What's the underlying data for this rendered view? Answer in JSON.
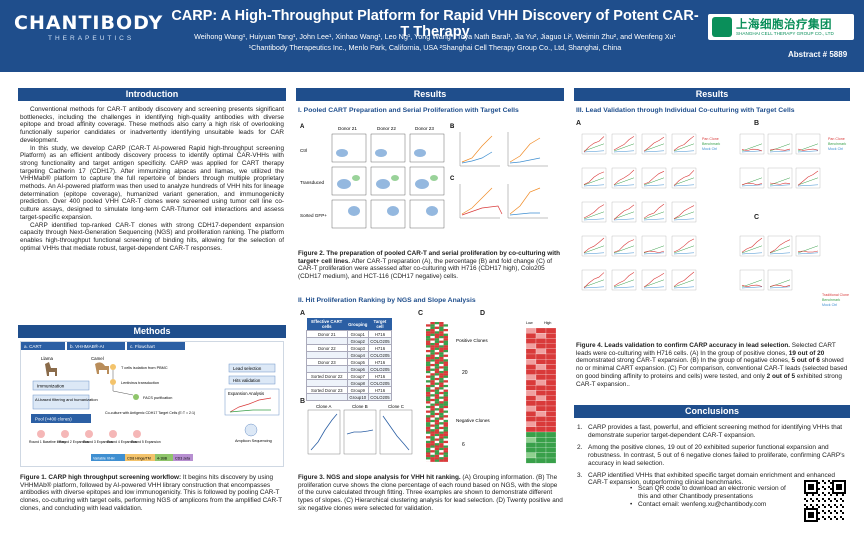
{
  "header": {
    "logo_brand": "CHANTIBODY",
    "logo_sub": "THERAPEUTICS",
    "title": "CARP: A High-Throughput Platform for Rapid VHH Discovery of Potent CAR-T Therapy",
    "authors": "Weihong Wang¹, Huiyuan Tang¹, John Lee¹, Xinhao Wang¹, Leo Ng¹, Yong Wang¹, Toya Nath Baral¹, Jia Yu², Jiaguo Li², Weimin Zhu², and Wenfeng Xu¹",
    "affiliations": "¹Chantibody Therapeutics Inc., Menlo Park, California, USA  ²Shanghai Cell Therapy Group Co., Ltd, Shanghai, China",
    "partner_logo_cn": "上海细胞治疗集团",
    "partner_logo_en": "SHANGHAI CELL THERAPY GROUP CO., LTD",
    "abstract_no": "Abstract # 5889"
  },
  "intro": {
    "heading": "Introduction",
    "p1": "Conventional methods for CAR-T antibody discovery and screening presents significant bottlenecks, including the challenges in identifying high-quality antibodies with diverse epitope and broad affinity coverage. These methods also carry a high risk of overlooking functionally superior candidates or inadvertently identifying unsuitable leads for CAR development.",
    "p2": "In this study, we develop CARP (CAR-T AI-powered Rapid high-throughput screening Platform) as an efficient antibody discovery process to identify optimal CAR-VHHs with strong functionality and target antigen specificity. CARP was applied for CART therapy targeting Cadherin 17 (CDH17). After immunizing alpacas and llamas, we utilized the VHHMab® platform to capture the full repertoire of binders through multiple proprietary methods. An AI-powered platform was then used to analyze hundreds of VHH hits for lineage determination (epitope coverage), humanized variant generation, and immunogenicity prediction. Over 400 pooled VHH CAR-T clones were screened using tumor cell line co-culture assays, designed to simulate long-term CAR-T/tumor cell interactions and assess target-specific expansion.",
    "p3": "CARP identified top-ranked CAR-T clones with strong CDH17-dependent expansion capacity through Next-Generation Sequencing (NGS) and proliferation ranking. The platform enables high-throughput functional screening of binding hits, allowing for the selection of optimal VHHs that mediate robust, target-dependent CAR-T responses."
  },
  "methods": {
    "heading": "Methods",
    "panel_a": "a. CART",
    "panel_b": "b. VHHMAB®-AI",
    "panel_c": "c. Flowchart",
    "labels": [
      "Llama",
      "Camel",
      "Immunization",
      "AI-based filtering and humanization",
      "Pool (>400 clones)",
      "T cells isolation from PBMC",
      "Lentivirus transduction",
      "FACS purification",
      "Co-culture with Antigenic CDH17 Target Cells (E:T = 2:1)",
      "Lead selection",
      "Hits validation",
      "Expansion Analysis",
      "Amplicon Sequencing",
      "Round 1 Baseline library",
      "Round 2 Expansion",
      "Round 3 Expansion",
      "Round 4 Expansion",
      "Round 5 Expansion",
      "Variable VHH",
      "CD8 Hinge/TM",
      "4-1BB",
      "CD3 zeta"
    ],
    "caption_bold": "Figure 1. CARP high throughput screening workflow:",
    "caption": " It begins hits discovery by using VHHMAb® platform, followed by AI-powered VHH library construction that encompasses antibodies with diverse epitopes and low immunogenicity. This is followed by pooling CAR-T clones, co-culturing with target cells, performing NGS of amplicons from the amplified CAR-T clones, and concluding with lead validation."
  },
  "results_mid": {
    "heading": "Results",
    "sub1": "I. Pooled CART Preparation and Serial Proliferation with Target Cells",
    "donors": [
      "Donor 21",
      "Donor 22",
      "Donor 23"
    ],
    "rows": [
      "Ctrl",
      "Transduced",
      "Sorted GFP+"
    ],
    "fig2_bold": "Figure 2. The preparation of pooled CAR-T and serial proliferation by co-culturing with target+ cell lines.",
    "fig2": " After CAR-T preparation (A), the percentage (B) and fold change (C) of CAR-T proliferation were assessed after co-culturing with H716 (CDH17 high), Colo205 (CDH17 medium), and HCT-116 (CDH17 negative) cells.",
    "sub2": "II. Hit Proliferation Ranking by NGS and Slope Analysis",
    "table_headers": [
      "Effective CART cells",
      "Grouping",
      "Target cell"
    ],
    "table_rows": [
      [
        "Donor 21",
        "Group1",
        "H716"
      ],
      [
        "",
        "Group2",
        "COLO205"
      ],
      [
        "Donor 22",
        "Group3",
        "H716"
      ],
      [
        "",
        "Group4",
        "COLO205"
      ],
      [
        "Donor 23",
        "Group5",
        "H716"
      ],
      [
        "",
        "Group6",
        "COLO205"
      ],
      [
        "Sorted Donor 22",
        "Group7",
        "H716"
      ],
      [
        "",
        "Group8",
        "COLO205"
      ],
      [
        "Sorted Donor 23",
        "Group9",
        "H716"
      ],
      [
        "",
        "Group10",
        "COLO205"
      ]
    ],
    "clone_labels": [
      "Clone A",
      "Clone B",
      "Clone C"
    ],
    "heat_labels": {
      "positive": "Positive Clones",
      "negative": "Negative Clones",
      "count_pos": "20",
      "count_neg": "6",
      "low": "Low",
      "high": "High"
    },
    "fig3_bold": "Figure 3. NGS and slope analysis for VHH hit ranking.",
    "fig3": " (A) Grouping information. (B) The proliferation curve shows the clone percentage of each round based on NGS, with the slope of the curve calculated through fitting. Three examples are shown to demonstrate different types of slopes. (C) Hierarchical clustering analysis for lead selection. (D) Twenty positive and six negative clones were selected for validation."
  },
  "results_right": {
    "heading": "Results",
    "sub3": "III. Lead Validation through Individual Co-culturing with Target Cells",
    "legend": [
      "Pan Clone",
      "Benchmark",
      "Mock Ctrl"
    ],
    "legend_c": [
      "Traditional Clone",
      "Benchmark",
      "Mock Ctrl"
    ],
    "fig4_bold": "Figure 4. Leads validation to confirm CARP accuracy in lead selection.",
    "fig4_a": " Selected CART leads were co-culturing with H716 cells. (A) In the group of positive clones, ",
    "fig4_b": "19 out of 20",
    "fig4_c": " demonstrated strong CAR-T expansion. (B) In the group of negative clones, ",
    "fig4_d": "5 out of 6",
    "fig4_e": " showed no or minimal CART expansion. (C) For comparison, conventional CAR-T leads (selected based on good binding affinity to proteins and cells) were tested, and only ",
    "fig4_f": "2 out of 5",
    "fig4_g": " exhibited strong CAR-T expansion..",
    "conclusions_heading": "Conclusions",
    "conclusions": [
      "CARP provides a fast, powerful, and efficient screening method for identifying VHHs that demonstrate superior target-dependent CAR-T expansion.",
      "Among the positive clones, 19 out of 20 exhibited superior functional expansion and robustness. In contrast, 5 out of 6 negative clones failed to proliferate, confirming CARP's accuracy in lead selection.",
      "CARP identified VHHs that exhibited specific target domain enrichment and enhanced CAR-T expansion, outperforming clinical benchmarks."
    ],
    "qr_1": "Scan QR code to download an electronic version of this and other Chantibody presentations",
    "qr_2": "Contact email: wenfeng.xu@chantibody.com"
  },
  "colors": {
    "brand_blue": "#1f4e8c",
    "positive_red": "#d93a3a",
    "negative_green": "#39a04a",
    "orange": "#f08a24"
  }
}
